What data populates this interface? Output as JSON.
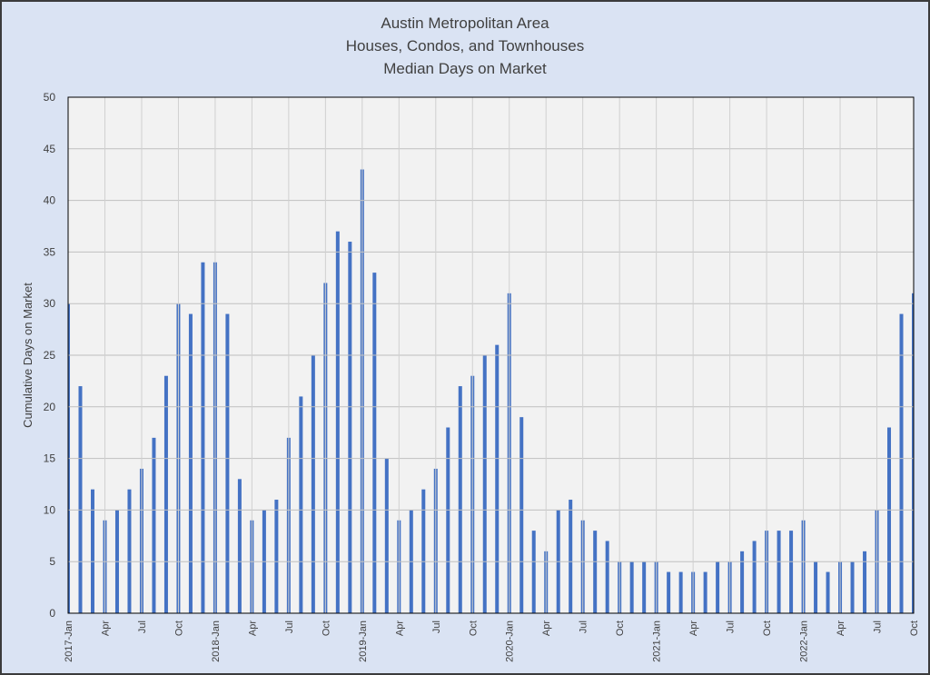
{
  "chart_data": {
    "type": "bar",
    "title": [
      "Austin Metropolitan Area",
      "Houses, Condos, and Townhouses",
      "Median Days on Market"
    ],
    "y_label": "Cumulative Days on Market",
    "categories": [
      "2017-Jan",
      null,
      null,
      "Apr",
      null,
      null,
      "Jul",
      null,
      null,
      "Oct",
      null,
      null,
      "2018-Jan",
      null,
      null,
      "Apr",
      null,
      null,
      "Jul",
      null,
      null,
      "Oct",
      null,
      null,
      "2019-Jan",
      null,
      null,
      "Apr",
      null,
      null,
      "Jul",
      null,
      null,
      "Oct",
      null,
      null,
      "2020-Jan",
      null,
      null,
      "Apr",
      null,
      null,
      "Jul",
      null,
      null,
      "Oct",
      null,
      null,
      "2021-Jan",
      null,
      null,
      "Apr",
      null,
      null,
      "Jul",
      null,
      null,
      "Oct",
      null,
      null,
      "2022-Jan",
      null,
      null,
      "Apr",
      null,
      null,
      "Jul",
      null,
      null,
      "Oct"
    ],
    "values": [
      30,
      22,
      12,
      9,
      10,
      12,
      14,
      17,
      23,
      30,
      29,
      34,
      34,
      29,
      13,
      9,
      10,
      11,
      17,
      21,
      25,
      32,
      37,
      36,
      43,
      33,
      15,
      9,
      10,
      12,
      14,
      18,
      22,
      23,
      25,
      26,
      31,
      19,
      8,
      6,
      10,
      11,
      9,
      8,
      7,
      5,
      5,
      5,
      5,
      4,
      4,
      4,
      4,
      5,
      5,
      6,
      7,
      8,
      8,
      8,
      9,
      5,
      4,
      5,
      5,
      6,
      10,
      18,
      29,
      31
    ],
    "color": "#4472c4",
    "ylim": [
      0,
      50
    ],
    "yticks": [
      0,
      5,
      10,
      15,
      20,
      25,
      30,
      35,
      40,
      45,
      50
    ],
    "grid": true
  }
}
